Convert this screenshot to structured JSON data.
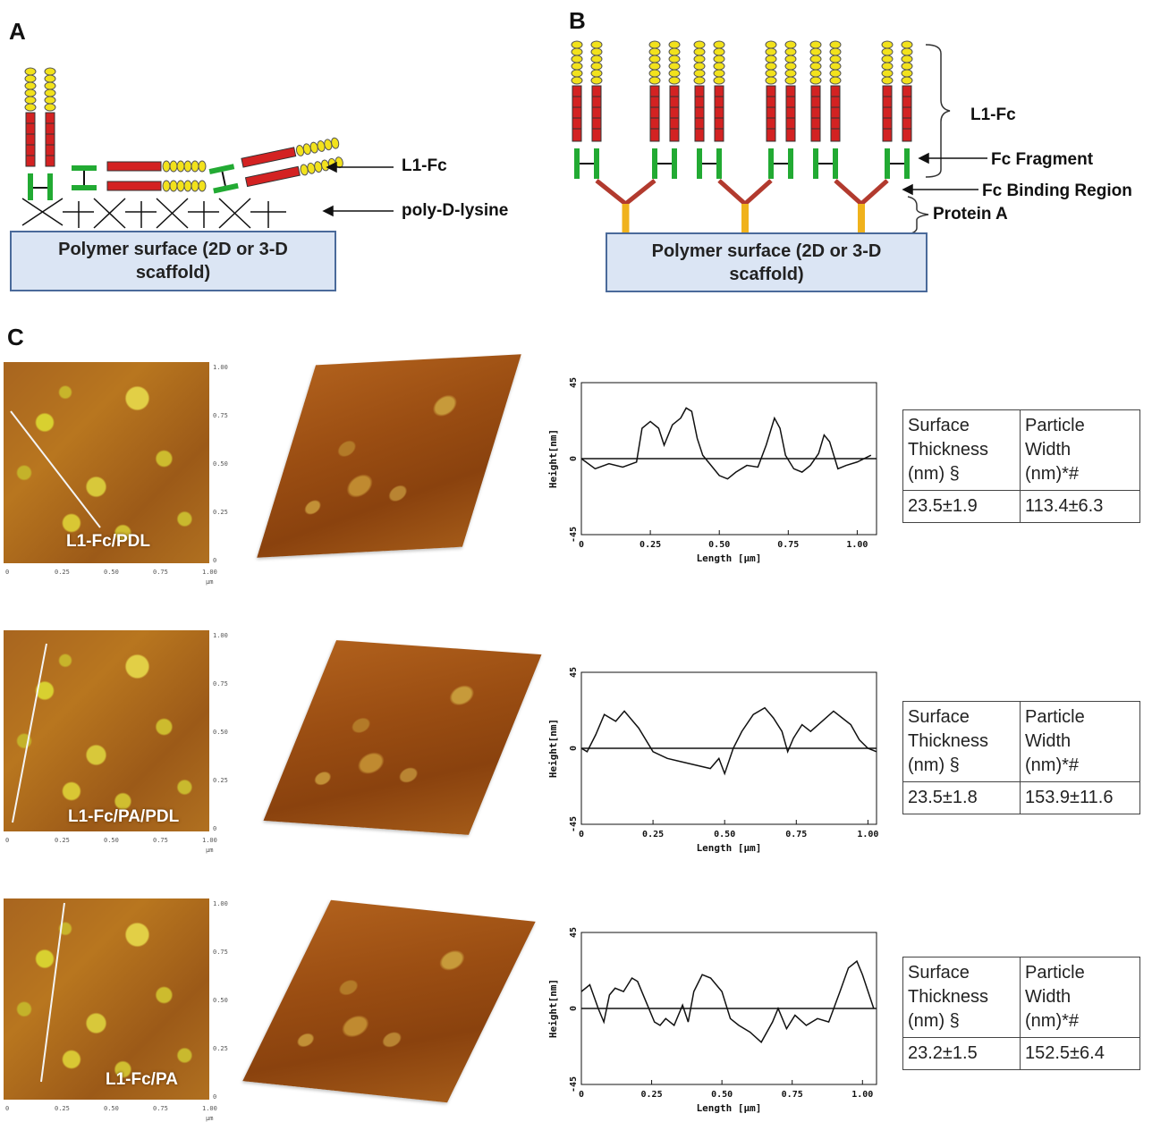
{
  "panels": {
    "a": {
      "letter": "A",
      "surface_line1": "Polymer surface (2D or 3-D",
      "surface_line2": "scaffold)",
      "callout_l1fc": "L1-Fc",
      "callout_pdl": "poly-D-lysine"
    },
    "b": {
      "letter": "B",
      "surface_line1": "Polymer surface (2D or 3-D",
      "surface_line2": "scaffold)",
      "callout_l1fc": "L1-Fc",
      "callout_fc_fragment": "Fc Fragment",
      "callout_binding_region": "Fc Binding Region",
      "callout_protein_a": "Protein A"
    },
    "c": {
      "letter": "C",
      "rows": [
        {
          "label": "L1-Fc/PDL",
          "table": {
            "h1_1": "Surface",
            "h1_2": "Thickness",
            "h1_3": "(nm) §",
            "h2_1": "Particle",
            "h2_2": "Width",
            "h2_3": "(nm)*#",
            "v1": "23.5±1.9",
            "v2": "113.4±6.3"
          }
        },
        {
          "label": "L1-Fc/PA/PDL",
          "table": {
            "h1_1": "Surface",
            "h1_2": "Thickness",
            "h1_3": "(nm) §",
            "h2_1": "Particle",
            "h2_2": "Width",
            "h2_3": "(nm)*#",
            "v1": "23.5±1.8",
            "v2": "153.9±11.6"
          }
        },
        {
          "label": "L1-Fc/PA",
          "table": {
            "h1_1": "Surface",
            "h1_2": "Thickness",
            "h1_3": "(nm) §",
            "h2_1": "Particle",
            "h2_2": "Width",
            "h2_3": "(nm)*#",
            "v1": "23.2±1.5",
            "v2": "152.5±6.4"
          }
        }
      ],
      "afm_ticks_x": [
        "0",
        "0.25",
        "0.50",
        "0.75",
        "1.00"
      ],
      "afm_ticks_y": [
        "1.00",
        "0.75",
        "0.50",
        "0.25",
        "0"
      ],
      "afm_unit": "μm"
    }
  },
  "colors": {
    "ig_domain": "#f2e21c",
    "fn_domain": "#d32222",
    "fc": "#22aa33",
    "binding_region": "#b23a2e",
    "protein_a": "#f0b21c",
    "surface_fill": "#dbe5f4"
  },
  "chart_data": [
    {
      "type": "line",
      "xlabel": "Length [μm]",
      "ylabel": "Height[nm]",
      "xlim": [
        0,
        1.07
      ],
      "ylim": [
        -45,
        45
      ],
      "xticks": [
        "0",
        "0.25",
        "0.50",
        "0.75",
        "1.00"
      ],
      "yticks": [
        "45",
        "0",
        "-45"
      ],
      "x": [
        0,
        0.05,
        0.1,
        0.15,
        0.2,
        0.22,
        0.25,
        0.28,
        0.3,
        0.33,
        0.36,
        0.38,
        0.4,
        0.42,
        0.44,
        0.46,
        0.5,
        0.53,
        0.56,
        0.6,
        0.64,
        0.67,
        0.7,
        0.72,
        0.74,
        0.77,
        0.8,
        0.83,
        0.86,
        0.88,
        0.9,
        0.93,
        0.96,
        1.0,
        1.05
      ],
      "y": [
        0,
        -6,
        -3,
        -5,
        -2,
        18,
        22,
        18,
        8,
        20,
        24,
        30,
        28,
        12,
        2,
        -2,
        -10,
        -12,
        -8,
        -4,
        -5,
        8,
        24,
        18,
        2,
        -6,
        -8,
        -4,
        3,
        14,
        10,
        -6,
        -4,
        -2,
        2
      ]
    },
    {
      "type": "line",
      "xlabel": "Length [μm]",
      "ylabel": "Height[nm]",
      "xlim": [
        0,
        1.03
      ],
      "ylim": [
        -45,
        45
      ],
      "xticks": [
        "0",
        "0.25",
        "0.50",
        "0.75",
        "1.00"
      ],
      "yticks": [
        "45",
        "0",
        "-45"
      ],
      "x": [
        0,
        0.02,
        0.05,
        0.08,
        0.12,
        0.15,
        0.2,
        0.25,
        0.3,
        0.35,
        0.4,
        0.45,
        0.48,
        0.5,
        0.53,
        0.56,
        0.6,
        0.64,
        0.67,
        0.7,
        0.72,
        0.74,
        0.77,
        0.8,
        0.84,
        0.88,
        0.91,
        0.94,
        0.97,
        1.0,
        1.03
      ],
      "y": [
        0,
        -2,
        8,
        20,
        16,
        22,
        12,
        -2,
        -6,
        -8,
        -10,
        -12,
        -6,
        -15,
        0,
        10,
        20,
        24,
        18,
        10,
        -2,
        6,
        14,
        10,
        16,
        22,
        18,
        14,
        5,
        0,
        -2
      ]
    },
    {
      "type": "line",
      "xlabel": "Length [μm]",
      "ylabel": "Height[nm]",
      "xlim": [
        0,
        1.05
      ],
      "ylim": [
        -45,
        45
      ],
      "xticks": [
        "0",
        "0.25",
        "0.50",
        "0.75",
        "1.00"
      ],
      "yticks": [
        "45",
        "0",
        "-45"
      ],
      "x": [
        0,
        0.03,
        0.06,
        0.08,
        0.1,
        0.12,
        0.15,
        0.18,
        0.2,
        0.23,
        0.26,
        0.28,
        0.3,
        0.33,
        0.36,
        0.38,
        0.4,
        0.43,
        0.46,
        0.5,
        0.53,
        0.56,
        0.6,
        0.64,
        0.68,
        0.7,
        0.73,
        0.76,
        0.8,
        0.84,
        0.88,
        0.92,
        0.95,
        0.98,
        1.0,
        1.04
      ],
      "y": [
        10,
        14,
        0,
        -8,
        8,
        12,
        10,
        18,
        16,
        4,
        -8,
        -10,
        -6,
        -10,
        2,
        -8,
        10,
        20,
        18,
        10,
        -6,
        -10,
        -14,
        -20,
        -8,
        0,
        -12,
        -4,
        -10,
        -6,
        -8,
        10,
        24,
        28,
        20,
        0
      ]
    }
  ]
}
